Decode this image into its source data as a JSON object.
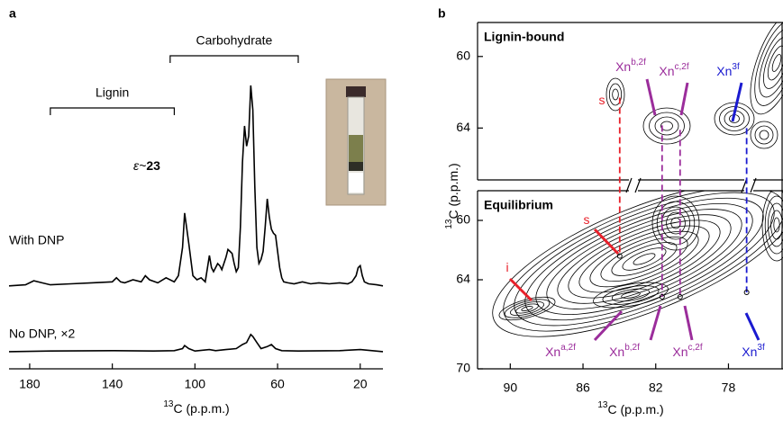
{
  "chart_data": [
    {
      "type": "line",
      "panel": "a",
      "xlabel": {
        "sup": "13",
        "text": "C (p.p.m.)"
      },
      "xlim": [
        190,
        9
      ],
      "xticks": [
        180,
        140,
        100,
        60,
        20
      ],
      "series": [
        {
          "name": "With DNP",
          "color": "#000000",
          "label_color": "#2a2ad6",
          "x": [
            190,
            182,
            178,
            174,
            170,
            160,
            150,
            140,
            138,
            136,
            134,
            130,
            126,
            124,
            122,
            118,
            114,
            110,
            108,
            106,
            105,
            103,
            101,
            99,
            97,
            95,
            93,
            92,
            91,
            89,
            88,
            87,
            85,
            84,
            83,
            82,
            81,
            80,
            79,
            78,
            77,
            76,
            75,
            74,
            73,
            72,
            71,
            70,
            69,
            68,
            67,
            66,
            65,
            64,
            63,
            62,
            61,
            60,
            59,
            58,
            57,
            55,
            52,
            48,
            44,
            40,
            35,
            30,
            26,
            24,
            22,
            21,
            20,
            19,
            18,
            16,
            12,
            9
          ],
          "values": [
            1,
            1.5,
            3.5,
            2.5,
            1.5,
            2,
            2.5,
            3,
            5,
            3,
            2.5,
            4,
            3,
            6,
            4,
            2.5,
            5,
            3,
            6,
            20,
            37,
            22,
            6,
            4,
            5,
            3,
            16,
            10,
            8,
            12,
            11,
            9,
            15,
            19,
            18,
            17,
            12,
            8,
            10,
            30,
            62,
            80,
            70,
            75,
            100,
            88,
            50,
            20,
            12,
            14,
            18,
            30,
            44,
            35,
            29,
            27,
            26,
            18,
            10,
            5,
            3,
            2.5,
            2,
            3,
            2,
            2.5,
            2,
            2.5,
            2,
            3,
            6,
            10,
            11,
            6,
            3,
            2,
            1.5,
            1
          ]
        },
        {
          "name": "No DNP, ×2",
          "color": "#000000",
          "label_color": "#2a2ad6",
          "x": [
            190,
            170,
            140,
            120,
            110,
            106,
            105,
            103,
            100,
            93,
            90,
            85,
            80,
            77,
            75,
            73,
            72,
            70,
            68,
            65,
            63,
            61,
            58,
            50,
            30,
            20,
            9
          ],
          "values": [
            0.5,
            0.8,
            1,
            0.8,
            1,
            2,
            3.5,
            2,
            0.8,
            1.5,
            1,
            1.5,
            2,
            4,
            5,
            9,
            8,
            5,
            2,
            3,
            4,
            2,
            1,
            0.8,
            1,
            1.5,
            0.5
          ]
        }
      ],
      "annotations": [
        {
          "text": "Lignin",
          "x": [
            170,
            110
          ]
        },
        {
          "text": "Carbohydrate",
          "x": [
            112,
            50
          ]
        }
      ],
      "enhancement": {
        "prefix": "ε~",
        "value": 23,
        "color": "#2a2ad6"
      }
    },
    {
      "type": "contour",
      "panel": "b",
      "xlabel": {
        "sup": "13",
        "text": "C (p.p.m.)"
      },
      "ylabel": {
        "sup": "13",
        "text": "C (p.p.m.)"
      },
      "xlim": [
        91.8,
        75
      ],
      "xticks": [
        90,
        86,
        82,
        78
      ],
      "title_color": "#1a1ad0",
      "panels": [
        {
          "title": "Lignin-bound",
          "ylim": [
            58.1,
            66.9
          ],
          "yticks": [
            60,
            64
          ],
          "labels": [
            {
              "base": "s",
              "color": "#e8202a"
            },
            {
              "base": "Xn",
              "sup": "b,2f",
              "color": "#9b2d9b"
            },
            {
              "base": "Xn",
              "sup": "c,2f",
              "color": "#9b2d9b"
            },
            {
              "base": "Xn",
              "sup": "3f",
              "color": "#1a1ad0"
            }
          ]
        },
        {
          "title": "Equilibrium",
          "ylim": [
            58,
            70
          ],
          "yticks": [
            60,
            64,
            70
          ],
          "labels": [
            {
              "base": "s",
              "color": "#e8202a"
            },
            {
              "base": "i",
              "color": "#e8202a"
            },
            {
              "base": "Xn",
              "sup": "a,2f",
              "color": "#9b2d9b"
            },
            {
              "base": "Xn",
              "sup": "b,2f",
              "color": "#9b2d9b"
            },
            {
              "base": "Xn",
              "sup": "c,2f",
              "color": "#9b2d9b"
            },
            {
              "base": "Xn",
              "sup": "3f",
              "color": "#1a1ad0"
            }
          ]
        }
      ],
      "guides": [
        {
          "x": 83.98,
          "y": [
            62.3,
            62.4
          ],
          "color": "#e8202a"
        },
        {
          "x": 81.65,
          "y": [
            63.85,
            65.15
          ],
          "color": "#9b2d9b"
        },
        {
          "x": 80.66,
          "y": [
            64.1,
            65.15
          ],
          "color": "#9b2d9b"
        },
        {
          "x": 77.0,
          "y": [
            64.0,
            64.85
          ],
          "color": "#1a1ad0"
        }
      ]
    }
  ]
}
